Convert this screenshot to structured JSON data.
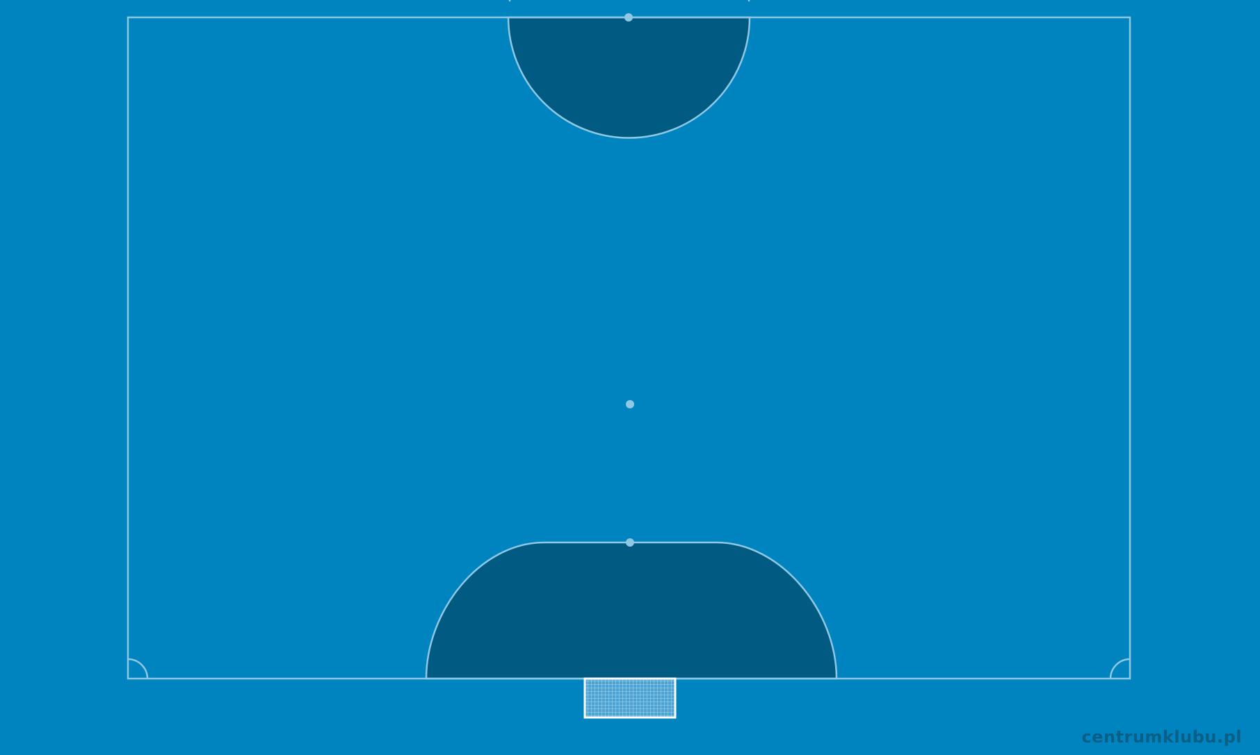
{
  "pitch": {
    "background_color": "#0084bf",
    "penalty_area_color": "#005a82",
    "line_color": "#8fc8e4",
    "goal_net_color": "#ffffff"
  },
  "watermark": {
    "text": "centrumklubu.pl",
    "color": "#0b5e86"
  }
}
